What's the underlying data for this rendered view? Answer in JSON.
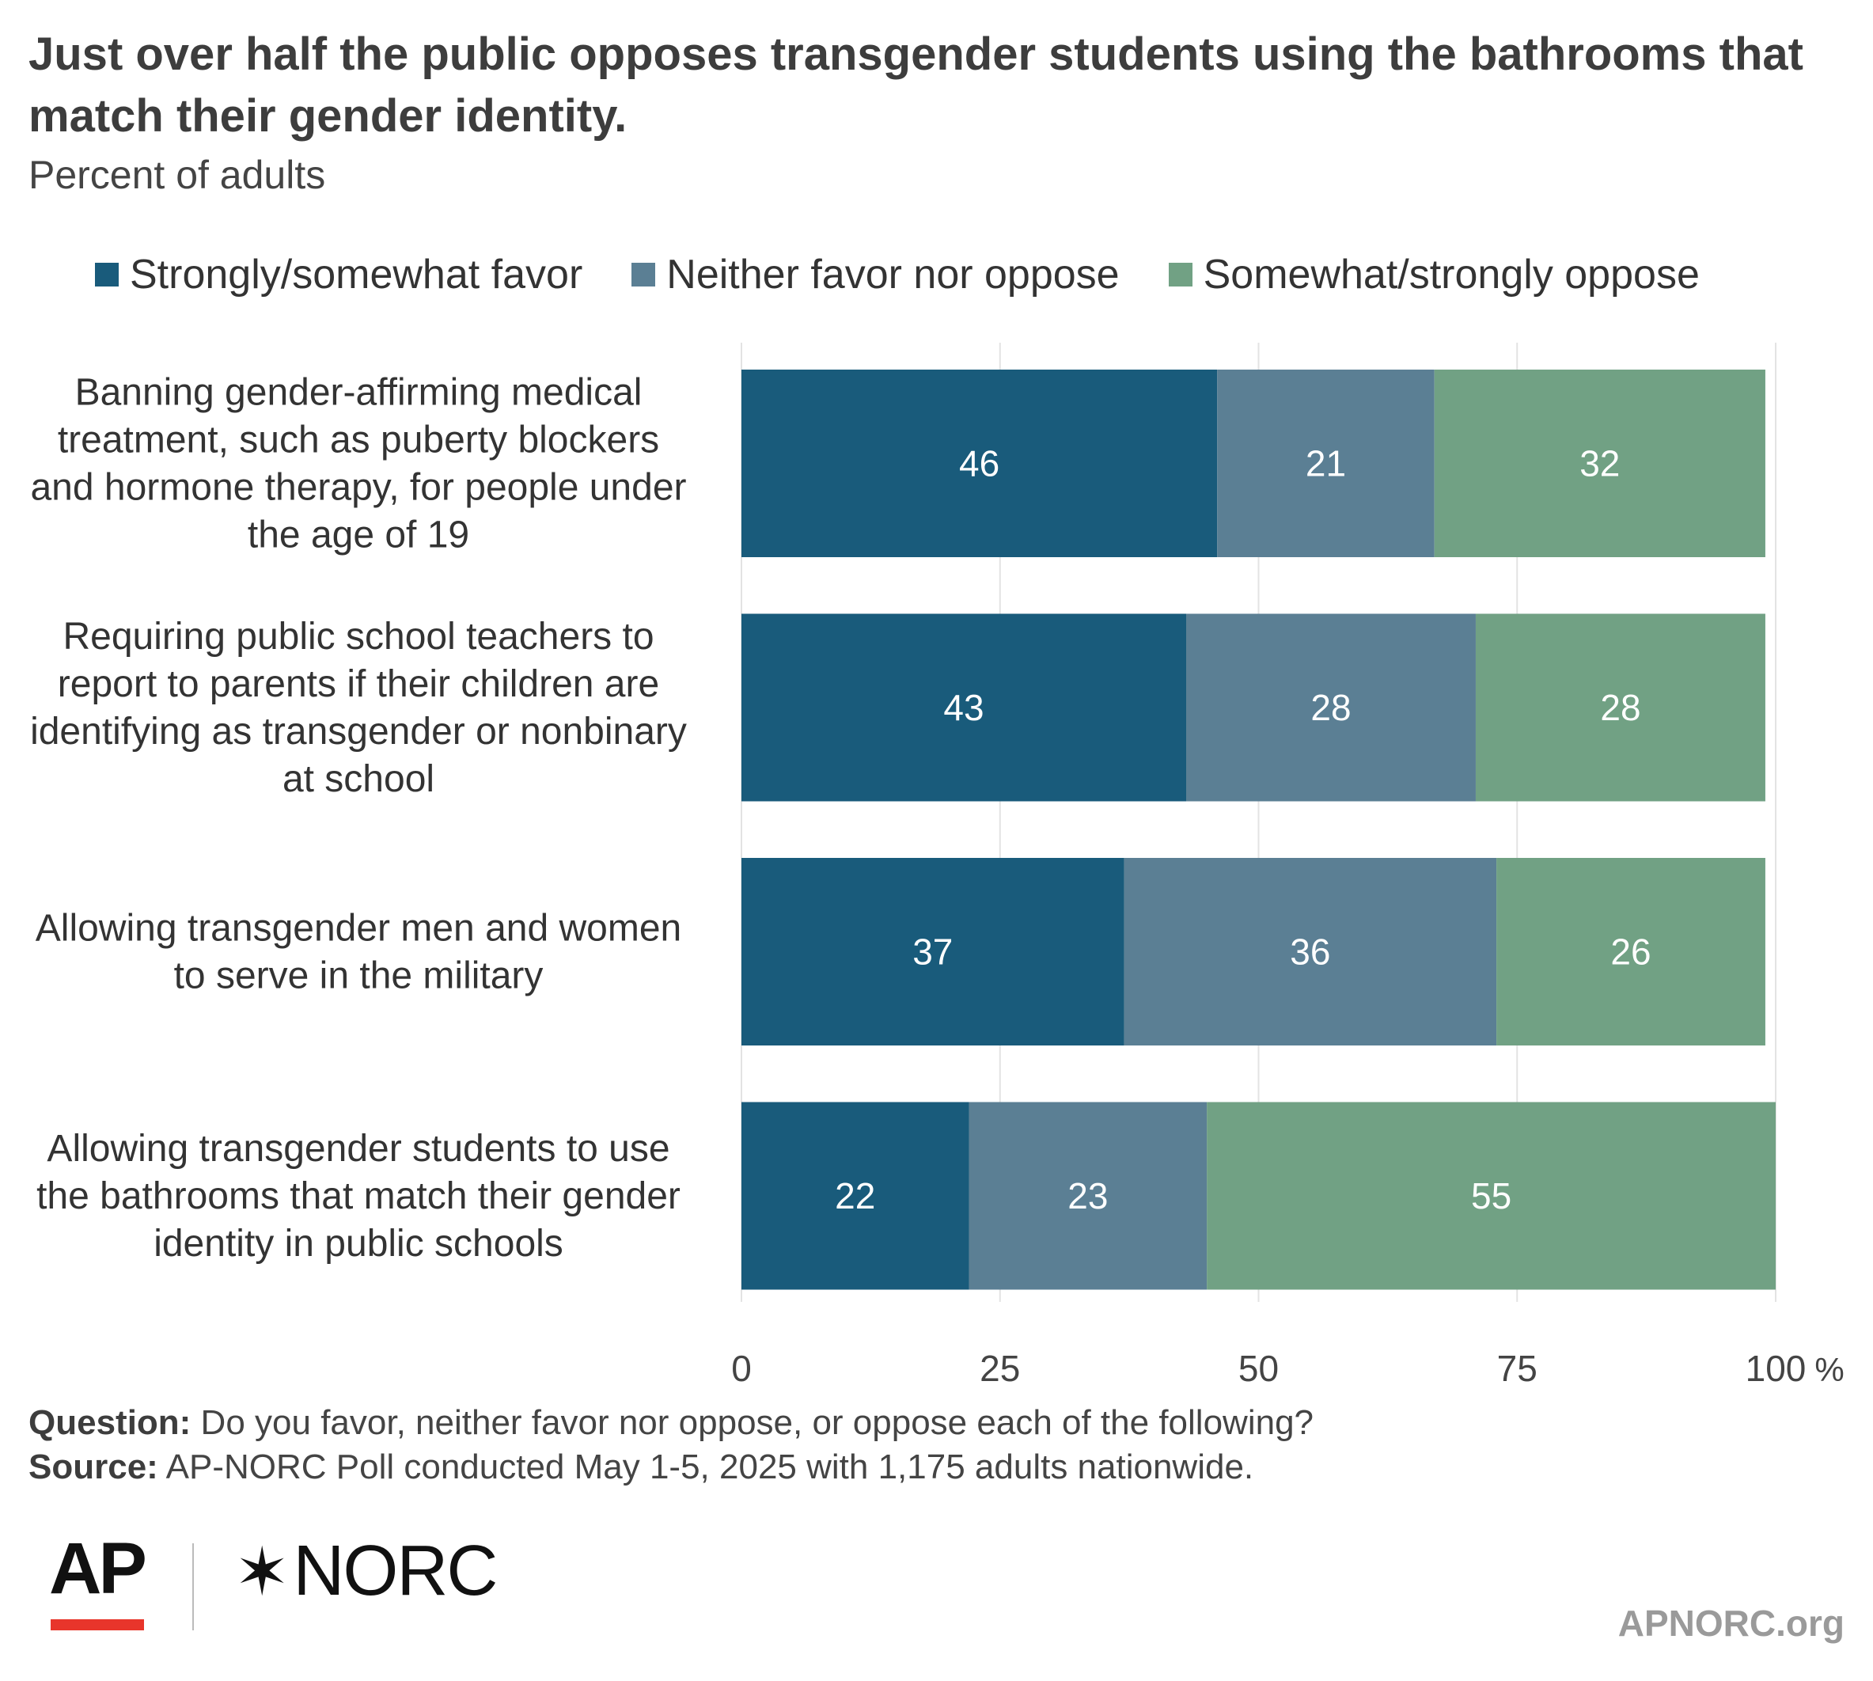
{
  "title": "Just over half the public opposes transgender students using the bathrooms that match their gender identity.",
  "subtitle": "Percent of adults",
  "legend": [
    {
      "label": "Strongly/somewhat favor",
      "color": "#195b7b"
    },
    {
      "label": "Neither favor nor oppose",
      "color": "#5b7f94"
    },
    {
      "label": "Somewhat/strongly oppose",
      "color": "#71a184"
    }
  ],
  "chart_data": {
    "type": "bar",
    "orientation": "horizontal",
    "stacked": true,
    "categories": [
      "Banning gender-affirming medical treatment, such as puberty blockers and hormone therapy, for people under the age of 19",
      "Requiring public school teachers to report to parents if their children are identifying as transgender or nonbinary at school",
      "Allowing transgender men and women to serve in the military",
      "Allowing transgender students to use the bathrooms that match their gender identity in public schools"
    ],
    "category_lines": [
      [
        "Banning gender-affirming medical",
        "treatment, such as puberty blockers",
        "and hormone therapy, for people under",
        "the age of 19"
      ],
      [
        "Requiring public school teachers to",
        "report to parents if their children are",
        "identifying as transgender or nonbinary",
        "at school"
      ],
      [
        "Allowing transgender men and women",
        "to serve in the military"
      ],
      [
        "Allowing transgender students to use",
        "the bathrooms that match their gender",
        "identity in public schools"
      ]
    ],
    "series": [
      {
        "name": "Strongly/somewhat favor",
        "color": "#195b7b",
        "values": [
          46,
          43,
          37,
          22
        ]
      },
      {
        "name": "Neither favor nor oppose",
        "color": "#5b7f94",
        "values": [
          21,
          28,
          36,
          23
        ]
      },
      {
        "name": "Somewhat/strongly oppose",
        "color": "#71a184",
        "values": [
          32,
          28,
          26,
          55
        ]
      }
    ],
    "xlim": [
      0,
      100
    ],
    "xticks": [
      "0",
      "25",
      "50",
      "75",
      "100"
    ],
    "x_unit": "%",
    "grid": true,
    "legend_position": "top"
  },
  "footer": {
    "question_label": "Question:",
    "question_text": " Do you favor, neither favor nor oppose, or oppose each of the following?",
    "source_label": "Source:",
    "source_text": " AP-NORC Poll conducted May 1-5, 2025 with 1,175 adults nationwide."
  },
  "logos": {
    "ap": "AP",
    "norc_star": "✶",
    "norc": "NORC",
    "site": "APNORC.org",
    "ap_accent_color": "#e8352b"
  }
}
